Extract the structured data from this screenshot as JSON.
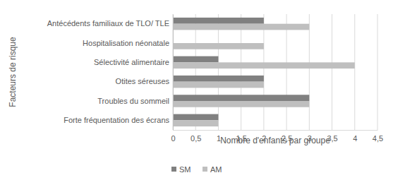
{
  "chart_data": {
    "type": "bar",
    "orientation": "horizontal",
    "x_label": "Nombre d'enfants par groupe",
    "y_label": "Facteurs de risque",
    "categories": [
      "Antécédents familiaux de TLO/ TLE",
      "Hospitalisation néonatale",
      "Sélectivité alimentaire",
      "Otites séreuses",
      "Troubles du sommeil",
      "Forte fréquentation des écrans"
    ],
    "series": [
      {
        "name": "SM",
        "color": "#808080",
        "values": [
          2,
          0,
          1,
          2,
          3,
          1
        ]
      },
      {
        "name": "AM",
        "color": "#bfbfbf",
        "values": [
          3,
          2,
          4,
          2,
          3,
          1
        ]
      }
    ],
    "xlim": [
      0,
      4.5
    ],
    "xticks": [
      0,
      {
        "value": 0.5,
        "label": "0,5"
      },
      1,
      {
        "value": 1.5,
        "label": "1,5"
      },
      2,
      {
        "value": 2.5,
        "label": "2,5"
      },
      3,
      {
        "value": 3.5,
        "label": "3,5"
      },
      4,
      {
        "value": 4.5,
        "label": "4,5"
      }
    ],
    "grid": true,
    "legend": "bottom"
  }
}
